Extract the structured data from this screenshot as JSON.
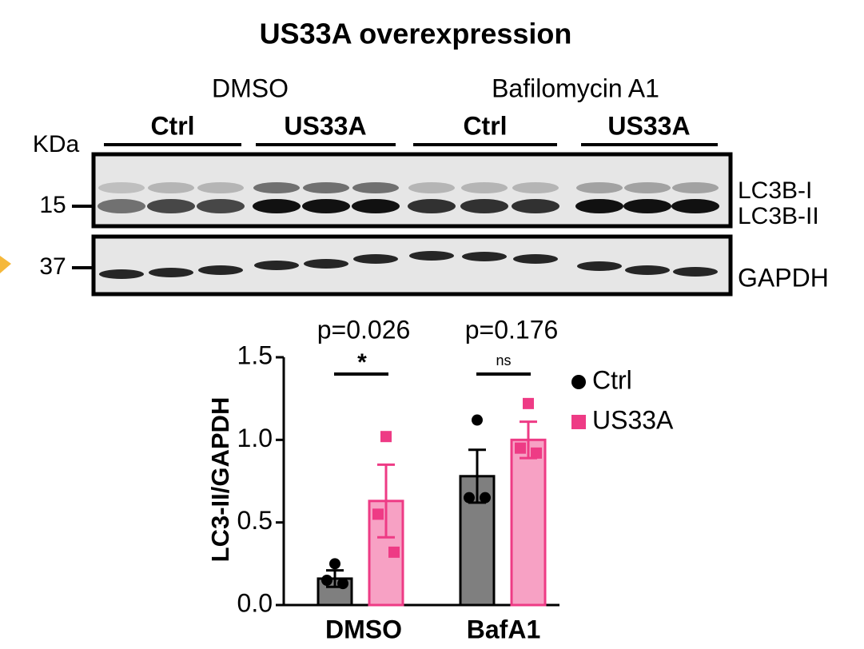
{
  "blot": {
    "title": "US33A overexpression",
    "unit": "KDa",
    "treatments": [
      "DMSO",
      "Bafilomycin A1"
    ],
    "groups": [
      "Ctrl",
      "US33A",
      "Ctrl",
      "US33A"
    ],
    "markers": [
      "15",
      "37"
    ],
    "bands": [
      "LC3B-I",
      "LC3B-II",
      "GAPDH"
    ]
  },
  "chart_data": {
    "type": "bar",
    "y_label": "LC3-II/GAPDH",
    "categories": [
      "DMSO",
      "BafA1"
    ],
    "series": [
      {
        "name": "Ctrl",
        "color": "#7f7f7f",
        "point_color": "#000000",
        "values": [
          0.16,
          0.78
        ],
        "errors": [
          0.05,
          0.16
        ],
        "points": [
          [
            0.25,
            0.15,
            0.13
          ],
          [
            1.12,
            0.65,
            0.65
          ]
        ]
      },
      {
        "name": "US33A",
        "color": "#f7a1c4",
        "point_color": "#ee3b85",
        "values": [
          0.63,
          1.0
        ],
        "errors": [
          0.22,
          0.11
        ],
        "points": [
          [
            1.02,
            0.55,
            0.32
          ],
          [
            1.22,
            0.95,
            0.92
          ]
        ]
      }
    ],
    "ylim": [
      0,
      1.5
    ],
    "yticks": [
      {
        "value": 0,
        "label": "0.0"
      },
      0.5,
      {
        "value": 1,
        "label": "1.0"
      },
      1.5
    ],
    "annotations": [
      {
        "text": "p=0.026",
        "mark": "*"
      },
      {
        "text": "p=0.176",
        "mark": "ns"
      }
    ],
    "legend": "right"
  }
}
